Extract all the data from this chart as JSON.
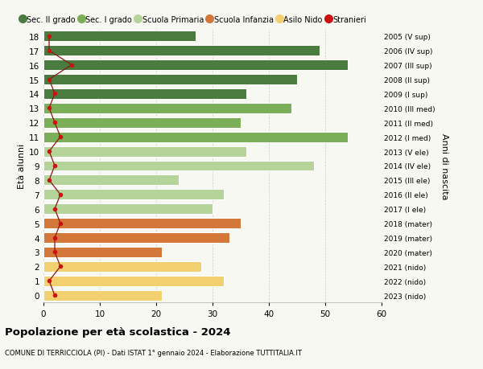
{
  "ages": [
    18,
    17,
    16,
    15,
    14,
    13,
    12,
    11,
    10,
    9,
    8,
    7,
    6,
    5,
    4,
    3,
    2,
    1,
    0
  ],
  "right_labels": [
    "2005 (V sup)",
    "2006 (IV sup)",
    "2007 (III sup)",
    "2008 (II sup)",
    "2009 (I sup)",
    "2010 (III med)",
    "2011 (II med)",
    "2012 (I med)",
    "2013 (V ele)",
    "2014 (IV ele)",
    "2015 (III ele)",
    "2016 (II ele)",
    "2017 (I ele)",
    "2018 (mater)",
    "2019 (mater)",
    "2020 (mater)",
    "2021 (nido)",
    "2022 (nido)",
    "2023 (nido)"
  ],
  "bar_values": [
    27,
    49,
    54,
    45,
    36,
    44,
    35,
    54,
    36,
    48,
    24,
    32,
    30,
    35,
    33,
    21,
    28,
    32,
    21
  ],
  "bar_colors": [
    "#4a7c3f",
    "#4a7c3f",
    "#4a7c3f",
    "#4a7c3f",
    "#4a7c3f",
    "#7aaf58",
    "#7aaf58",
    "#7aaf58",
    "#b5d49a",
    "#b5d49a",
    "#b5d49a",
    "#b5d49a",
    "#b5d49a",
    "#d4783a",
    "#d4783a",
    "#d4783a",
    "#f2d070",
    "#f2d070",
    "#f2d070"
  ],
  "stranieri_values": [
    1,
    1,
    5,
    1,
    2,
    1,
    2,
    3,
    1,
    2,
    1,
    3,
    2,
    3,
    2,
    2,
    3,
    1,
    2
  ],
  "legend_labels": [
    "Sec. II grado",
    "Sec. I grado",
    "Scuola Primaria",
    "Scuola Infanzia",
    "Asilo Nido",
    "Stranieri"
  ],
  "legend_colors": [
    "#4a7c3f",
    "#7aaf58",
    "#b5d49a",
    "#d4783a",
    "#f2d070",
    "#cc1111"
  ],
  "title": "Popolazione per età scolastica - 2024",
  "subtitle": "COMUNE DI TERRICCIOLA (PI) - Dati ISTAT 1° gennaio 2024 - Elaborazione TUTTITALIA.IT",
  "ylabel_left": "Età alunni",
  "ylabel_right": "Anni di nascita",
  "xlim": [
    0,
    60
  ],
  "xticks": [
    0,
    10,
    20,
    30,
    40,
    50,
    60
  ],
  "bg_color": "#f8f8f2",
  "grid_color": "#cccccc",
  "stranieri_line_color": "#8b1515"
}
